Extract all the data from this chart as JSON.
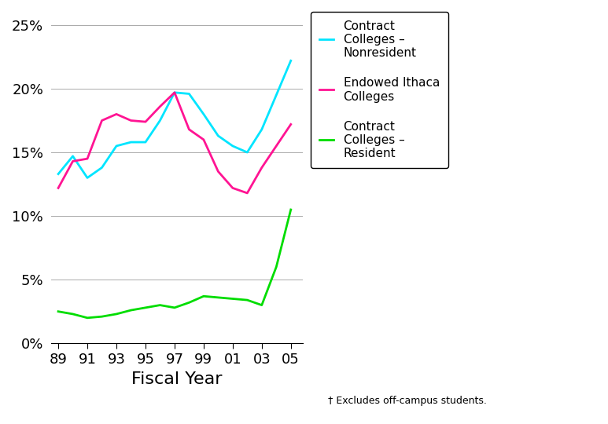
{
  "x_values": [
    1989,
    1990,
    1991,
    1992,
    1993,
    1994,
    1995,
    1996,
    1997,
    1998,
    1999,
    2000,
    2001,
    2002,
    2003,
    2004,
    2005
  ],
  "contract_nonresident": [
    0.133,
    0.147,
    0.13,
    0.138,
    0.155,
    0.158,
    0.158,
    0.175,
    0.197,
    0.196,
    0.18,
    0.163,
    0.155,
    0.15,
    0.168,
    0.195,
    0.222
  ],
  "endowed_ithaca": [
    0.122,
    0.143,
    0.145,
    0.175,
    0.18,
    0.175,
    0.174,
    0.186,
    0.197,
    0.168,
    0.16,
    0.135,
    0.122,
    0.118,
    0.138,
    0.155,
    0.172
  ],
  "contract_resident": [
    0.025,
    0.023,
    0.02,
    0.021,
    0.023,
    0.026,
    0.028,
    0.03,
    0.028,
    0.032,
    0.037,
    0.036,
    0.035,
    0.034,
    0.03,
    0.06,
    0.105
  ],
  "colors": {
    "contract_nonresident": "#00E5FF",
    "endowed_ithaca": "#FF1493",
    "contract_resident": "#00DD00"
  },
  "x_tick_values": [
    1989,
    1991,
    1993,
    1995,
    1997,
    1999,
    2001,
    2003,
    2005
  ],
  "x_tick_labels": [
    "89",
    "91",
    "93",
    "95",
    "97",
    "99",
    "01",
    "03",
    "05"
  ],
  "xlabel": "Fiscal Year",
  "footnote": "† Excludes off-campus students.",
  "ylim": [
    0.0,
    0.26
  ],
  "yticks": [
    0.0,
    0.05,
    0.1,
    0.15,
    0.2,
    0.25
  ],
  "yticklabels": [
    "0%",
    "5%",
    "10%",
    "15%",
    "20%",
    "25%"
  ],
  "linewidth": 2.0,
  "bg_color": "#FFFFFF",
  "tick_fontsize": 13,
  "xlabel_fontsize": 16,
  "legend_fontsize": 11
}
